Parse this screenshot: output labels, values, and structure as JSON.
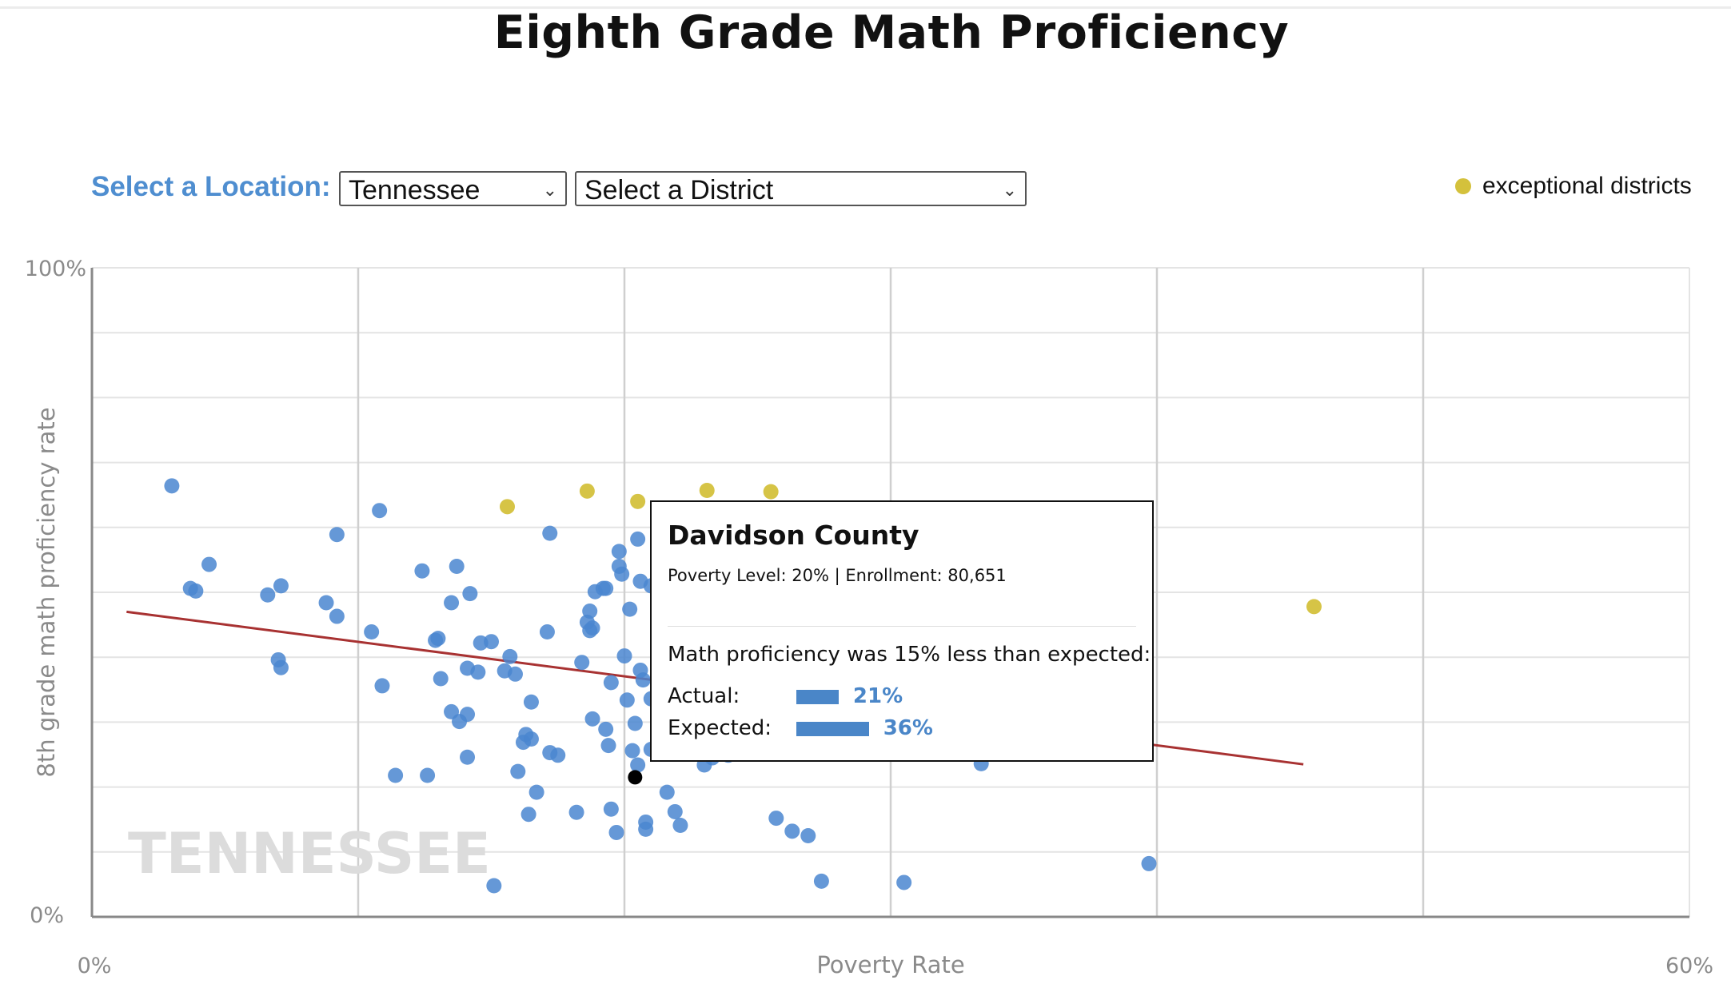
{
  "page": {
    "title": "Eighth Grade Math Proficiency"
  },
  "controls": {
    "location_label": "Select a Location:",
    "state_select": "Tennessee",
    "district_select": "Select a District"
  },
  "legend": {
    "exceptional_label": "exceptional districts",
    "exceptional_color": "#d4c13c"
  },
  "watermark": "TENNESSEE",
  "tooltip": {
    "district": "Davidson County",
    "meta": "Poverty Level: 20% | Enrollment: 80,651",
    "difference_text": "Math proficiency was 15% less than expected:",
    "actual_label": "Actual:",
    "actual_value": "21%",
    "actual_fraction": 0.21,
    "expected_label": "Expected:",
    "expected_value": "36%",
    "expected_fraction": 0.36
  },
  "chart_data": {
    "type": "scatter",
    "title": "Eighth Grade Math Proficiency",
    "xlabel": "Poverty Rate",
    "ylabel": "8th grade math proficiency rate",
    "xlim": [
      0,
      60
    ],
    "ylim": [
      0,
      100
    ],
    "x_tick_labels": [
      "0%",
      "60%"
    ],
    "y_tick_labels": [
      "0%",
      "100%"
    ],
    "x_gridlines": [
      10,
      20,
      30,
      40,
      50
    ],
    "y_gridlines": [
      10,
      20,
      30,
      40,
      50,
      60,
      70,
      80,
      90
    ],
    "colors": {
      "regular": "#4a86d0",
      "exceptional": "#d4c13c",
      "highlight": "#000000",
      "trend": "#a83232"
    },
    "trend_line": {
      "x": [
        1.3,
        45.5
      ],
      "y": [
        47,
        23.5
      ]
    },
    "highlight": {
      "name": "Davidson County",
      "x": 20.4,
      "y": 21.5
    },
    "exceptional": [
      {
        "x": 15.6,
        "y": 63.2
      },
      {
        "x": 18.6,
        "y": 65.6
      },
      {
        "x": 20.5,
        "y": 64.0
      },
      {
        "x": 23.1,
        "y": 65.7
      },
      {
        "x": 25.5,
        "y": 65.5
      },
      {
        "x": 45.9,
        "y": 47.8
      }
    ],
    "points": [
      {
        "x": 3.0,
        "y": 66.4
      },
      {
        "x": 3.7,
        "y": 50.6
      },
      {
        "x": 3.9,
        "y": 50.2
      },
      {
        "x": 4.4,
        "y": 54.3
      },
      {
        "x": 6.6,
        "y": 49.6
      },
      {
        "x": 7.1,
        "y": 51.0
      },
      {
        "x": 7.0,
        "y": 39.6
      },
      {
        "x": 7.1,
        "y": 38.4
      },
      {
        "x": 8.8,
        "y": 48.4
      },
      {
        "x": 9.2,
        "y": 58.9
      },
      {
        "x": 9.2,
        "y": 46.3
      },
      {
        "x": 10.5,
        "y": 43.9
      },
      {
        "x": 10.8,
        "y": 62.6
      },
      {
        "x": 10.9,
        "y": 35.6
      },
      {
        "x": 11.4,
        "y": 21.8
      },
      {
        "x": 12.6,
        "y": 21.8
      },
      {
        "x": 12.4,
        "y": 53.3
      },
      {
        "x": 12.9,
        "y": 42.6
      },
      {
        "x": 13.0,
        "y": 42.9
      },
      {
        "x": 13.1,
        "y": 36.7
      },
      {
        "x": 13.5,
        "y": 48.4
      },
      {
        "x": 13.7,
        "y": 54.0
      },
      {
        "x": 13.5,
        "y": 31.6
      },
      {
        "x": 13.8,
        "y": 30.1
      },
      {
        "x": 14.1,
        "y": 38.3
      },
      {
        "x": 14.2,
        "y": 49.8
      },
      {
        "x": 14.1,
        "y": 31.2
      },
      {
        "x": 14.1,
        "y": 24.6
      },
      {
        "x": 14.5,
        "y": 37.7
      },
      {
        "x": 14.6,
        "y": 42.2
      },
      {
        "x": 15.0,
        "y": 42.4
      },
      {
        "x": 15.5,
        "y": 37.9
      },
      {
        "x": 15.7,
        "y": 40.1
      },
      {
        "x": 15.9,
        "y": 37.4
      },
      {
        "x": 16.0,
        "y": 22.4
      },
      {
        "x": 16.2,
        "y": 26.9
      },
      {
        "x": 16.3,
        "y": 28.1
      },
      {
        "x": 16.5,
        "y": 27.4
      },
      {
        "x": 16.4,
        "y": 15.8
      },
      {
        "x": 16.5,
        "y": 33.1
      },
      {
        "x": 16.7,
        "y": 19.2
      },
      {
        "x": 15.1,
        "y": 4.8
      },
      {
        "x": 17.1,
        "y": 43.9
      },
      {
        "x": 17.2,
        "y": 59.1
      },
      {
        "x": 17.2,
        "y": 25.3
      },
      {
        "x": 17.5,
        "y": 24.9
      },
      {
        "x": 18.2,
        "y": 16.1
      },
      {
        "x": 18.4,
        "y": 39.2
      },
      {
        "x": 18.6,
        "y": 45.4
      },
      {
        "x": 18.7,
        "y": 47.1
      },
      {
        "x": 18.8,
        "y": 44.5
      },
      {
        "x": 18.7,
        "y": 44.1
      },
      {
        "x": 18.8,
        "y": 30.5
      },
      {
        "x": 18.9,
        "y": 50.1
      },
      {
        "x": 19.2,
        "y": 50.6
      },
      {
        "x": 19.3,
        "y": 50.6
      },
      {
        "x": 19.3,
        "y": 28.9
      },
      {
        "x": 19.4,
        "y": 26.4
      },
      {
        "x": 19.5,
        "y": 36.1
      },
      {
        "x": 19.5,
        "y": 16.6
      },
      {
        "x": 19.7,
        "y": 13.0
      },
      {
        "x": 19.8,
        "y": 54.0
      },
      {
        "x": 19.8,
        "y": 56.3
      },
      {
        "x": 19.9,
        "y": 52.8
      },
      {
        "x": 20.0,
        "y": 40.2
      },
      {
        "x": 20.1,
        "y": 33.4
      },
      {
        "x": 20.2,
        "y": 47.4
      },
      {
        "x": 20.3,
        "y": 25.6
      },
      {
        "x": 20.4,
        "y": 29.8
      },
      {
        "x": 20.5,
        "y": 23.4
      },
      {
        "x": 20.5,
        "y": 58.2
      },
      {
        "x": 20.6,
        "y": 51.7
      },
      {
        "x": 20.6,
        "y": 38.0
      },
      {
        "x": 20.7,
        "y": 36.5
      },
      {
        "x": 20.8,
        "y": 14.6
      },
      {
        "x": 20.8,
        "y": 13.5
      },
      {
        "x": 21.0,
        "y": 33.6
      },
      {
        "x": 21.0,
        "y": 51.0
      },
      {
        "x": 21.0,
        "y": 25.8
      },
      {
        "x": 21.6,
        "y": 19.2
      },
      {
        "x": 21.9,
        "y": 16.2
      },
      {
        "x": 22.1,
        "y": 14.1
      },
      {
        "x": 23.0,
        "y": 23.4
      },
      {
        "x": 23.3,
        "y": 24.5
      },
      {
        "x": 23.9,
        "y": 24.9
      },
      {
        "x": 25.7,
        "y": 15.2
      },
      {
        "x": 26.3,
        "y": 13.2
      },
      {
        "x": 26.9,
        "y": 12.5
      },
      {
        "x": 27.4,
        "y": 5.5
      },
      {
        "x": 30.5,
        "y": 5.3
      },
      {
        "x": 33.4,
        "y": 23.6
      },
      {
        "x": 39.7,
        "y": 8.2
      }
    ]
  }
}
